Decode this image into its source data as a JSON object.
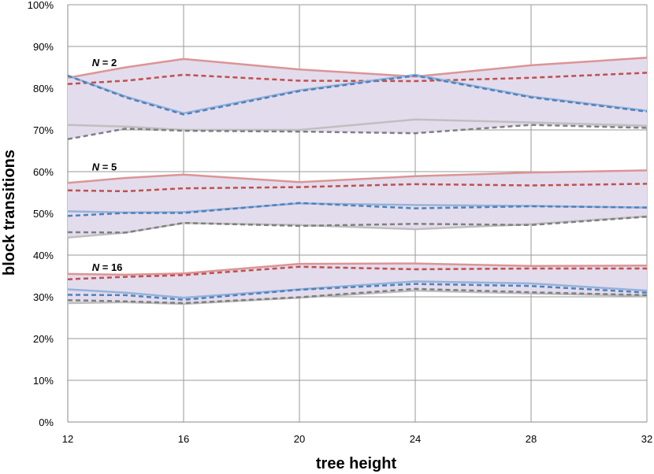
{
  "chart_data": {
    "type": "line",
    "title": "",
    "xlabel": "tree height",
    "ylabel": "block transitions",
    "x": [
      12,
      14,
      16,
      20,
      24,
      28,
      32
    ],
    "xticks": [
      "12",
      "16",
      "20",
      "24",
      "28",
      "32"
    ],
    "yticks": [
      "0%",
      "10%",
      "20%",
      "30%",
      "40%",
      "50%",
      "60%",
      "70%",
      "80%",
      "90%",
      "100%"
    ],
    "xlim": [
      12,
      32
    ],
    "ylim": [
      0,
      100
    ],
    "grid": true,
    "band_color": "#e3dced",
    "groups": [
      {
        "label_prefix": "N",
        "label_suffix": " = 2",
        "label_x": 13,
        "label_y": 86,
        "band": [
          "upper-red-solid",
          "lower-gray-dashed"
        ],
        "series": [
          {
            "name": "upper-red-solid",
            "color": "#dc9495",
            "dash": false,
            "width": 2.5,
            "values": [
              82.5,
              85,
              87,
              84.5,
              82.8,
              85.5,
              87.3
            ]
          },
          {
            "name": "upper-red-dashed",
            "color": "#c0504d",
            "dash": true,
            "width": 2.5,
            "values": [
              81,
              81.8,
              83.2,
              81.8,
              81.7,
              82.5,
              83.7
            ]
          },
          {
            "name": "mid-blue-solid",
            "color": "#95b3d7",
            "dash": false,
            "width": 2.5,
            "values": [
              83,
              78,
              74,
              79.5,
              83.2,
              78,
              74.6
            ]
          },
          {
            "name": "mid-blue-dashed",
            "color": "#4f81bd",
            "dash": true,
            "width": 2.5,
            "values": [
              83,
              77.8,
              73.7,
              79.3,
              83,
              77.8,
              74.4
            ]
          },
          {
            "name": "lower-gray-solid",
            "color": "#bfbfbf",
            "dash": false,
            "width": 2.5,
            "values": [
              71.2,
              70.8,
              70,
              70,
              72.5,
              71.8,
              71
            ]
          },
          {
            "name": "lower-gray-dashed",
            "color": "#7f7f7f",
            "dash": true,
            "width": 2.5,
            "values": [
              67.8,
              70.3,
              69.8,
              69.6,
              69.2,
              71.2,
              70.5
            ]
          }
        ]
      },
      {
        "label_prefix": "N",
        "label_suffix": " = 5",
        "label_x": 13,
        "label_y": 61,
        "band": [
          "upper-red-solid",
          "lower-gray-solid"
        ],
        "series": [
          {
            "name": "upper-red-solid",
            "color": "#dc9495",
            "dash": false,
            "width": 2.5,
            "values": [
              57.3,
              58.5,
              59.3,
              57.5,
              58.9,
              59.8,
              60.3
            ]
          },
          {
            "name": "upper-red-dashed",
            "color": "#c0504d",
            "dash": true,
            "width": 2.5,
            "values": [
              55.5,
              55.3,
              56,
              56.3,
              57,
              56.7,
              57.1
            ]
          },
          {
            "name": "mid-blue-solid",
            "color": "#95b3d7",
            "dash": false,
            "width": 2.5,
            "values": [
              50.5,
              50.2,
              50.3,
              52.4,
              52,
              51.8,
              51.4
            ]
          },
          {
            "name": "mid-blue-dashed",
            "color": "#4f81bd",
            "dash": true,
            "width": 2.5,
            "values": [
              49.4,
              50.1,
              50.1,
              52.5,
              51.2,
              51.7,
              51.4
            ]
          },
          {
            "name": "lower-gray-solid",
            "color": "#bfbfbf",
            "dash": false,
            "width": 2.5,
            "values": [
              44.2,
              45.4,
              47.7,
              47.2,
              46.2,
              47.4,
              49.3
            ]
          },
          {
            "name": "lower-gray-dashed",
            "color": "#7f7f7f",
            "dash": true,
            "width": 2.5,
            "values": [
              45.5,
              45.4,
              47.7,
              47,
              47.5,
              47.2,
              49.2
            ]
          }
        ]
      },
      {
        "label_prefix": "N",
        "label_suffix": " = 16",
        "label_x": 13,
        "label_y": 37,
        "band": [
          "upper-red-solid",
          "lower-gray-solid"
        ],
        "series": [
          {
            "name": "upper-red-solid",
            "color": "#dc9495",
            "dash": false,
            "width": 2.5,
            "values": [
              35.5,
              35.3,
              35.6,
              37.9,
              38,
              37.4,
              37.5
            ]
          },
          {
            "name": "upper-red-dashed",
            "color": "#c0504d",
            "dash": true,
            "width": 2.5,
            "values": [
              34.2,
              34.8,
              35.2,
              37.2,
              36.6,
              36.8,
              36.8
            ]
          },
          {
            "name": "mid-blue-solid",
            "color": "#95b3d7",
            "dash": false,
            "width": 2.5,
            "values": [
              31.8,
              31,
              29.8,
              31.8,
              33.7,
              33.2,
              31.5
            ]
          },
          {
            "name": "mid-blue-dashed",
            "color": "#4f81bd",
            "dash": true,
            "width": 2.5,
            "values": [
              30.5,
              30.4,
              29.3,
              31.7,
              33.1,
              32.6,
              31
            ]
          },
          {
            "name": "lower-gray-solid",
            "color": "#bfbfbf",
            "dash": false,
            "width": 2.5,
            "values": [
              28.5,
              28.7,
              28.3,
              29.8,
              31.5,
              30.8,
              30.2
            ]
          },
          {
            "name": "lower-gray-dashed",
            "color": "#7f7f7f",
            "dash": true,
            "width": 2.5,
            "values": [
              29.2,
              28.9,
              28.5,
              29.9,
              31.9,
              31.1,
              30.4
            ]
          }
        ]
      }
    ]
  }
}
